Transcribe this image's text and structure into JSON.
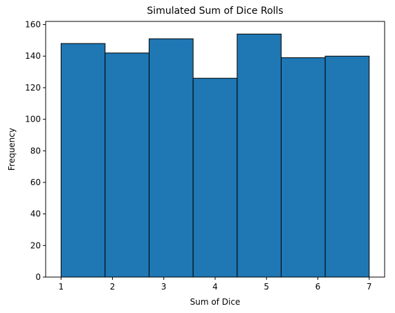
{
  "chart_data": {
    "type": "bar",
    "title": "Simulated Sum of Dice Rolls",
    "xlabel": "Sum of Dice",
    "ylabel": "Frequency",
    "xlim": [
      0.7,
      7.3
    ],
    "ylim": [
      0,
      162
    ],
    "x_ticks": [
      1,
      2,
      3,
      4,
      5,
      6,
      7
    ],
    "y_ticks": [
      0,
      20,
      40,
      60,
      80,
      100,
      120,
      140,
      160
    ],
    "bins": [
      {
        "start": 1.0,
        "end": 1.8571,
        "value": 148
      },
      {
        "start": 1.8571,
        "end": 2.7143,
        "value": 142
      },
      {
        "start": 2.7143,
        "end": 3.5714,
        "value": 151
      },
      {
        "start": 3.5714,
        "end": 4.4286,
        "value": 126
      },
      {
        "start": 4.4286,
        "end": 5.2857,
        "value": 154
      },
      {
        "start": 5.2857,
        "end": 6.1429,
        "value": 139
      },
      {
        "start": 6.1429,
        "end": 7.0,
        "value": 140
      }
    ],
    "grid": false,
    "bar_color": "#1f77b4",
    "edge_color": "#000000"
  }
}
